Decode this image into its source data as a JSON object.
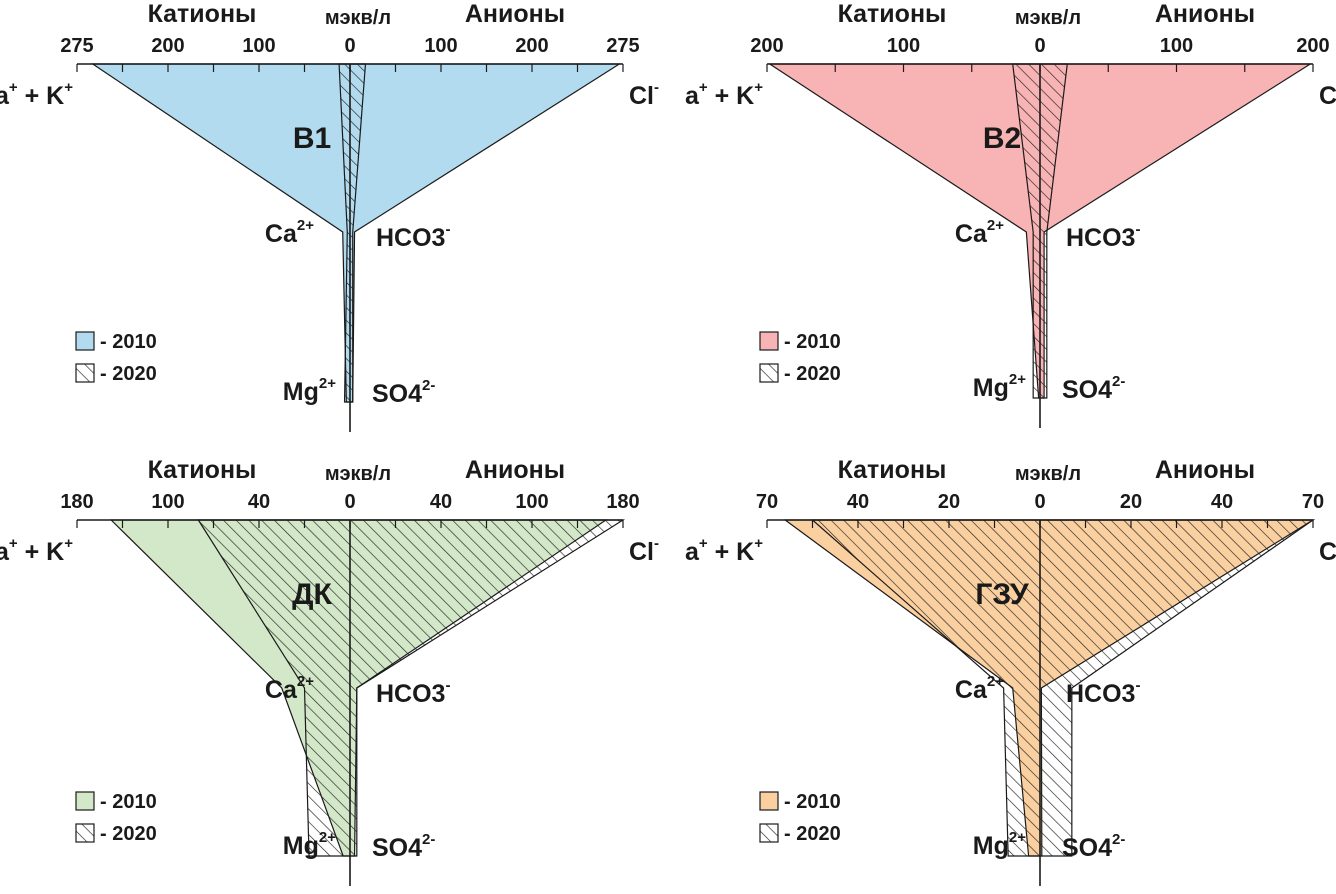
{
  "chart_data": [
    {
      "type": "stiff-diagram",
      "title": "В1",
      "axis_max": 275,
      "scale_breaks": [
        275,
        200,
        100,
        0
      ],
      "cation_ticks": [
        275,
        200,
        100,
        0
      ],
      "anion_ticks": [
        100,
        200,
        275
      ],
      "header": {
        "cations": "Катионы",
        "anions": "Анионы",
        "unit": "мэкв/л"
      },
      "ions": {
        "cations": [
          {
            "base": "Na",
            "sup": "+",
            "base2": " + K",
            "sup2": "+"
          },
          {
            "base": "Ca",
            "sup": "2+"
          },
          {
            "base": "Mg",
            "sup": "2+"
          }
        ],
        "anions": [
          {
            "base": "Cl",
            "sup": "-"
          },
          {
            "base": "HCO3",
            "sup": "-"
          },
          {
            "base": "SO4",
            "sup": "2-"
          }
        ]
      },
      "series": [
        {
          "name": "- 2010",
          "fill": "#b2dbef",
          "hatch": false,
          "cations": [
            262,
            8,
            4
          ],
          "anions": [
            272,
            5,
            3
          ]
        },
        {
          "name": "- 2020",
          "fill": "#ffffff",
          "hatch": true,
          "cations": [
            12,
            3,
            6
          ],
          "anions": [
            17,
            3,
            3
          ]
        }
      ]
    },
    {
      "type": "stiff-diagram",
      "title": "В2",
      "axis_max": 200,
      "scale_breaks": [
        200,
        100,
        0
      ],
      "cation_ticks": [
        200,
        100,
        0
      ],
      "anion_ticks": [
        100,
        200
      ],
      "header": {
        "cations": "Катионы",
        "anions": "Анионы",
        "unit": "мэкв/л"
      },
      "ions": {
        "cations": [
          {
            "base": "Na",
            "sup": "+",
            "base2": " + K",
            "sup2": "+"
          },
          {
            "base": "Ca",
            "sup": "2+"
          },
          {
            "base": "Mg",
            "sup": "2+"
          }
        ],
        "anions": [
          {
            "base": "Cl",
            "sup": "-"
          },
          {
            "base": "HCO3",
            "sup": "-"
          },
          {
            "base": "SO4",
            "sup": "2-"
          }
        ]
      },
      "series": [
        {
          "name": "- 2010",
          "fill": "#f8b4b4",
          "hatch": false,
          "cations": [
            198,
            10,
            1
          ],
          "anions": [
            198,
            3,
            3
          ]
        },
        {
          "name": "- 2020",
          "fill": "#ffffff",
          "hatch": true,
          "cations": [
            20,
            5,
            5
          ],
          "anions": [
            20,
            5,
            5
          ]
        }
      ]
    },
    {
      "type": "stiff-diagram",
      "title": "ДК",
      "axis_max": 180,
      "scale_breaks": [
        180,
        100,
        40,
        0
      ],
      "cation_ticks": [
        180,
        100,
        40,
        0
      ],
      "anion_ticks": [
        40,
        100,
        180
      ],
      "header": {
        "cations": "Катионы",
        "anions": "Анионы",
        "unit": "мэкв/л"
      },
      "ions": {
        "cations": [
          {
            "base": "Na",
            "sup": "+",
            "base2": " + K",
            "sup2": "+"
          },
          {
            "base": "Ca",
            "sup": "2+"
          },
          {
            "base": "Mg",
            "sup": "2+"
          }
        ],
        "anions": [
          {
            "base": "Cl",
            "sup": "-"
          },
          {
            "base": "HCO3",
            "sup": "-"
          },
          {
            "base": "SO4",
            "sup": "2-"
          }
        ]
      },
      "series": [
        {
          "name": "- 2010",
          "fill": "#d3e8c8",
          "hatch": false,
          "cations": [
            150,
            30,
            3
          ],
          "anions": [
            165,
            3,
            2
          ]
        },
        {
          "name": "- 2020",
          "fill": "#ffffff",
          "hatch": true,
          "cations": [
            80,
            20,
            18
          ],
          "anions": [
            180,
            3,
            3
          ]
        }
      ]
    },
    {
      "type": "stiff-diagram",
      "title": "ГЗУ",
      "axis_max": 70,
      "scale_breaks": [
        70,
        40,
        20,
        0
      ],
      "cation_ticks": [
        70,
        40,
        20,
        0
      ],
      "anion_ticks": [
        20,
        40,
        70
      ],
      "header": {
        "cations": "Катионы",
        "anions": "Анионы",
        "unit": "мэкв/л"
      },
      "ions": {
        "cations": [
          {
            "base": "Na",
            "sup": "+",
            "base2": " + K",
            "sup2": "+"
          },
          {
            "base": "Ca",
            "sup": "2+"
          },
          {
            "base": "Mg",
            "sup": "2+"
          }
        ],
        "anions": [
          {
            "base": "Cl",
            "sup": "-"
          },
          {
            "base": "HCO3",
            "sup": "-"
          },
          {
            "base": "SO4",
            "sup": "2-"
          }
        ]
      },
      "series": [
        {
          "name": "- 2010",
          "fill": "#fbd0a0",
          "hatch": false,
          "cations": [
            64,
            6,
            2.5
          ],
          "anions": [
            70,
            0.3,
            0.4
          ]
        },
        {
          "name": "- 2020",
          "fill": "#ffffff",
          "hatch": true,
          "cations": [
            55,
            8,
            7
          ],
          "anions": [
            70,
            7,
            7
          ]
        }
      ]
    }
  ]
}
